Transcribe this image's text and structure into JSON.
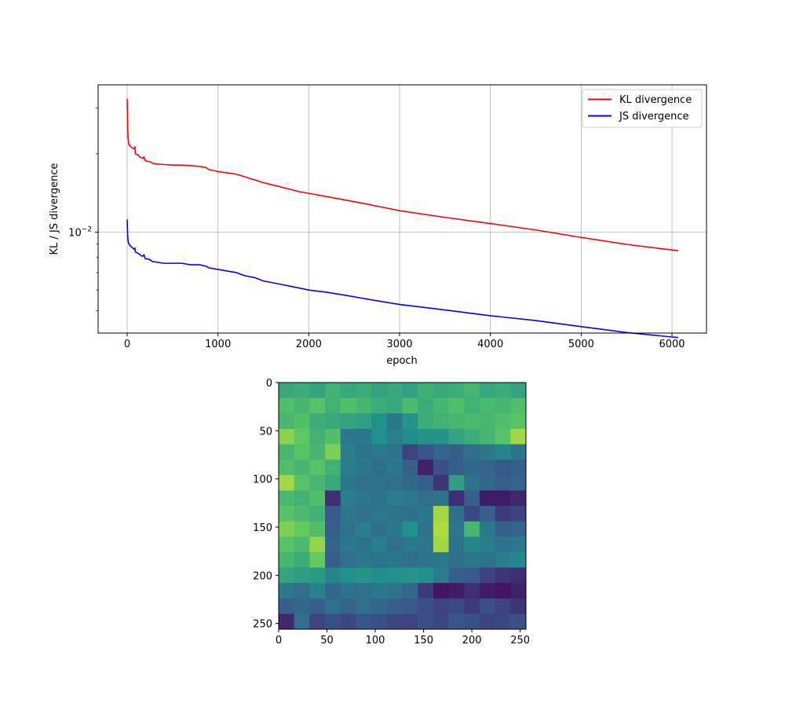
{
  "chart_data": [
    {
      "type": "line",
      "xlabel": "epoch",
      "ylabel": "KL / JS divergence",
      "yscale": "log",
      "xlim": [
        -320,
        6380
      ],
      "ylim": [
        0.0041,
        0.0368
      ],
      "grid": true,
      "legend_position": "top-right",
      "x_ticks": [
        0,
        1000,
        2000,
        3000,
        4000,
        5000,
        6000
      ],
      "y_ticks": [
        {
          "value": 0.01,
          "base": "10",
          "exp": "−2"
        }
      ],
      "series": [
        {
          "name": "KL divergence",
          "color": "#ff0000",
          "points": [
            [
              0,
              0.0325
            ],
            [
              3,
              0.0285
            ],
            [
              6,
              0.025
            ],
            [
              10,
              0.0232
            ],
            [
              15,
              0.0222
            ],
            [
              20,
              0.0217
            ],
            [
              30,
              0.0215
            ],
            [
              45,
              0.0212
            ],
            [
              60,
              0.021
            ],
            [
              80,
              0.0209
            ],
            [
              85,
              0.0213
            ],
            [
              90,
              0.02
            ],
            [
              120,
              0.0198
            ],
            [
              140,
              0.0194
            ],
            [
              160,
              0.0193
            ],
            [
              175,
              0.0192
            ],
            [
              185,
              0.0195
            ],
            [
              200,
              0.0188
            ],
            [
              230,
              0.0187
            ],
            [
              260,
              0.0186
            ],
            [
              280,
              0.0184
            ],
            [
              300,
              0.0183
            ],
            [
              400,
              0.0182
            ],
            [
              500,
              0.0181
            ],
            [
              600,
              0.0181
            ],
            [
              700,
              0.018
            ],
            [
              800,
              0.0179
            ],
            [
              870,
              0.0177
            ],
            [
              900,
              0.0174
            ],
            [
              1000,
              0.0171
            ],
            [
              1100,
              0.0169
            ],
            [
              1200,
              0.0167
            ],
            [
              1300,
              0.0163
            ],
            [
              1400,
              0.0159
            ],
            [
              1500,
              0.0155
            ],
            [
              1600,
              0.0152
            ],
            [
              1700,
              0.0149
            ],
            [
              1800,
              0.0146
            ],
            [
              1900,
              0.0143
            ],
            [
              2000,
              0.0141
            ],
            [
              2200,
              0.0137
            ],
            [
              2400,
              0.0133
            ],
            [
              2600,
              0.0129
            ],
            [
              2800,
              0.0125
            ],
            [
              3000,
              0.0121
            ],
            [
              3500,
              0.0114
            ],
            [
              4000,
              0.0108
            ],
            [
              4500,
              0.0102
            ],
            [
              5000,
              0.00955
            ],
            [
              5500,
              0.00898
            ],
            [
              6000,
              0.00855
            ],
            [
              6070,
              0.0085
            ]
          ]
        },
        {
          "name": "JS divergence",
          "color": "#0000ff",
          "points": [
            [
              0,
              0.0112
            ],
            [
              3,
              0.0102
            ],
            [
              6,
              0.0096
            ],
            [
              10,
              0.0093
            ],
            [
              15,
              0.0091
            ],
            [
              20,
              0.009
            ],
            [
              30,
              0.0089
            ],
            [
              45,
              0.0088
            ],
            [
              60,
              0.0087
            ],
            [
              80,
              0.0086
            ],
            [
              85,
              0.0087
            ],
            [
              90,
              0.0084
            ],
            [
              120,
              0.0083
            ],
            [
              140,
              0.0082
            ],
            [
              160,
              0.0081
            ],
            [
              175,
              0.0081
            ],
            [
              185,
              0.0082
            ],
            [
              200,
              0.0079
            ],
            [
              230,
              0.0079
            ],
            [
              260,
              0.0078
            ],
            [
              280,
              0.0077
            ],
            [
              300,
              0.0077
            ],
            [
              400,
              0.0076
            ],
            [
              500,
              0.0076
            ],
            [
              600,
              0.0076
            ],
            [
              700,
              0.0075
            ],
            [
              800,
              0.0075
            ],
            [
              870,
              0.0074
            ],
            [
              900,
              0.0073
            ],
            [
              1000,
              0.0072
            ],
            [
              1100,
              0.0071
            ],
            [
              1200,
              0.007
            ],
            [
              1300,
              0.0068
            ],
            [
              1400,
              0.0067
            ],
            [
              1500,
              0.0065
            ],
            [
              1600,
              0.0064
            ],
            [
              1700,
              0.0063
            ],
            [
              1800,
              0.0062
            ],
            [
              1900,
              0.0061
            ],
            [
              2000,
              0.006
            ],
            [
              2200,
              0.00588
            ],
            [
              2400,
              0.00573
            ],
            [
              2600,
              0.00557
            ],
            [
              2800,
              0.00542
            ],
            [
              3000,
              0.00528
            ],
            [
              3500,
              0.00503
            ],
            [
              4000,
              0.00478
            ],
            [
              4500,
              0.00458
            ],
            [
              5000,
              0.00434
            ],
            [
              5500,
              0.00412
            ],
            [
              6000,
              0.00396
            ],
            [
              6070,
              0.00394
            ]
          ]
        }
      ]
    },
    {
      "type": "heatmap",
      "colormap": "viridis",
      "xlim": [
        0,
        256
      ],
      "ylim": [
        256,
        0
      ],
      "x_ticks": [
        0,
        50,
        100,
        150,
        200,
        250
      ],
      "y_ticks": [
        0,
        50,
        100,
        150,
        200,
        250
      ],
      "grid_size": [
        16,
        16
      ],
      "values": [
        [
          0.6,
          0.62,
          0.58,
          0.64,
          0.6,
          0.62,
          0.58,
          0.6,
          0.57,
          0.63,
          0.6,
          0.62,
          0.66,
          0.6,
          0.62,
          0.58
        ],
        [
          0.7,
          0.66,
          0.72,
          0.64,
          0.7,
          0.66,
          0.62,
          0.6,
          0.68,
          0.62,
          0.66,
          0.7,
          0.64,
          0.68,
          0.66,
          0.7
        ],
        [
          0.66,
          0.7,
          0.62,
          0.6,
          0.58,
          0.56,
          0.5,
          0.4,
          0.52,
          0.62,
          0.64,
          0.66,
          0.68,
          0.66,
          0.7,
          0.72
        ],
        [
          0.82,
          0.74,
          0.64,
          0.7,
          0.4,
          0.4,
          0.5,
          0.42,
          0.48,
          0.52,
          0.52,
          0.58,
          0.62,
          0.66,
          0.72,
          0.86
        ],
        [
          0.66,
          0.72,
          0.66,
          0.8,
          0.42,
          0.38,
          0.4,
          0.38,
          0.2,
          0.26,
          0.32,
          0.3,
          0.36,
          0.4,
          0.46,
          0.38
        ],
        [
          0.7,
          0.66,
          0.72,
          0.64,
          0.42,
          0.4,
          0.36,
          0.4,
          0.3,
          0.1,
          0.24,
          0.3,
          0.34,
          0.32,
          0.28,
          0.3
        ],
        [
          0.86,
          0.72,
          0.66,
          0.6,
          0.4,
          0.36,
          0.38,
          0.36,
          0.34,
          0.3,
          0.16,
          0.56,
          0.38,
          0.34,
          0.3,
          0.32
        ],
        [
          0.68,
          0.64,
          0.7,
          0.14,
          0.42,
          0.4,
          0.38,
          0.42,
          0.4,
          0.36,
          0.38,
          0.14,
          0.3,
          0.08,
          0.08,
          0.12
        ],
        [
          0.72,
          0.68,
          0.64,
          0.28,
          0.4,
          0.36,
          0.4,
          0.38,
          0.36,
          0.4,
          0.86,
          0.36,
          0.22,
          0.3,
          0.18,
          0.2
        ],
        [
          0.8,
          0.76,
          0.7,
          0.3,
          0.38,
          0.42,
          0.36,
          0.4,
          0.5,
          0.38,
          0.88,
          0.4,
          0.66,
          0.4,
          0.3,
          0.32
        ],
        [
          0.72,
          0.68,
          0.84,
          0.32,
          0.4,
          0.38,
          0.42,
          0.36,
          0.4,
          0.4,
          0.86,
          0.38,
          0.46,
          0.42,
          0.38,
          0.4
        ],
        [
          0.66,
          0.62,
          0.76,
          0.3,
          0.36,
          0.4,
          0.38,
          0.4,
          0.36,
          0.38,
          0.4,
          0.36,
          0.4,
          0.38,
          0.42,
          0.46
        ],
        [
          0.58,
          0.56,
          0.54,
          0.46,
          0.5,
          0.52,
          0.48,
          0.5,
          0.52,
          0.5,
          0.42,
          0.3,
          0.28,
          0.2,
          0.16,
          0.14
        ],
        [
          0.4,
          0.36,
          0.44,
          0.34,
          0.38,
          0.36,
          0.4,
          0.38,
          0.34,
          0.18,
          0.06,
          0.08,
          0.14,
          0.08,
          0.06,
          0.1
        ],
        [
          0.3,
          0.34,
          0.3,
          0.36,
          0.32,
          0.36,
          0.34,
          0.3,
          0.28,
          0.24,
          0.2,
          0.22,
          0.18,
          0.24,
          0.2,
          0.16
        ],
        [
          0.12,
          0.36,
          0.2,
          0.24,
          0.22,
          0.26,
          0.24,
          0.22,
          0.2,
          0.24,
          0.22,
          0.26,
          0.24,
          0.2,
          0.22,
          0.24
        ]
      ]
    }
  ]
}
